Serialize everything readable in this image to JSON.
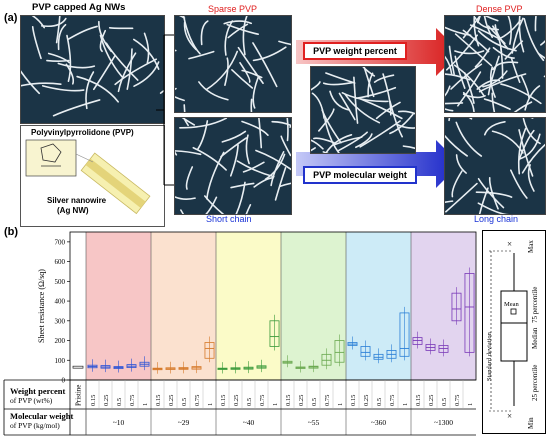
{
  "panel_a": {
    "label": "(a)",
    "title_left": "PVP capped Ag NWs",
    "sparse_label": "Sparse PVP",
    "dense_label": "Dense PVP",
    "weight_box": "PVP weight percent",
    "molecular_box": "PVP molecular weight",
    "short_chain": "Short chain",
    "long_chain": "Long chain",
    "inset_title": "Polyvinylpyrrolidone (PVP)",
    "inset_nanowire": "Silver nanowire",
    "inset_nanowire2": "(Ag NW)"
  },
  "panel_b": {
    "label": "(b)",
    "row1_label": "Weight percent",
    "row1_label2": "of PVP (wt%)",
    "row2_label": "Molecular weight",
    "row2_label2": "of PVP (kg/mol)",
    "pristine": "Pristine",
    "legend": {
      "max": "Max",
      "p75": "75 percentile",
      "mean": "Mean",
      "median": "Median",
      "p25": "25 percentile",
      "min": "Min",
      "std": "Standard deviation"
    }
  },
  "chart_data": {
    "type": "box",
    "ylabel": "Sheet resistance (Ω/sq)",
    "ylim": [
      0,
      750
    ],
    "yticks": [
      0,
      100,
      200,
      300,
      400,
      500,
      600,
      700
    ],
    "weight_percents": [
      "0.15",
      "0.25",
      "0.5",
      "0.75",
      "1"
    ],
    "groups": [
      {
        "mw": "~10",
        "color": "#f7c6c6",
        "boxcolor": "#2a52d6",
        "boxes": [
          [
            62,
            68,
            75
          ],
          [
            60,
            66,
            73
          ],
          [
            58,
            63,
            68
          ],
          [
            63,
            70,
            78
          ],
          [
            70,
            80,
            90
          ]
        ]
      },
      {
        "mw": "~29",
        "color": "#fbe1cf",
        "boxcolor": "#d67a2a",
        "boxes": [
          [
            52,
            56,
            60
          ],
          [
            53,
            57,
            62
          ],
          [
            54,
            58,
            63
          ],
          [
            55,
            62,
            68
          ],
          [
            110,
            160,
            190
          ]
        ]
      },
      {
        "mw": "~40",
        "color": "#fbfbc8",
        "boxcolor": "#3a9a3a",
        "boxes": [
          [
            53,
            57,
            60
          ],
          [
            54,
            58,
            62
          ],
          [
            55,
            60,
            65
          ],
          [
            60,
            66,
            72
          ],
          [
            170,
            220,
            300
          ]
        ]
      },
      {
        "mw": "~55",
        "color": "#ddf3d0",
        "boxcolor": "#6aa84f",
        "boxes": [
          [
            85,
            90,
            95
          ],
          [
            58,
            62,
            66
          ],
          [
            60,
            66,
            70
          ],
          [
            75,
            100,
            130
          ],
          [
            90,
            140,
            200
          ]
        ]
      },
      {
        "mw": "~360",
        "color": "#cdebf7",
        "boxcolor": "#2a7fd6",
        "boxes": [
          [
            175,
            182,
            190
          ],
          [
            120,
            140,
            170
          ],
          [
            105,
            115,
            130
          ],
          [
            110,
            130,
            150
          ],
          [
            120,
            160,
            340
          ]
        ]
      },
      {
        "mw": "~1300",
        "color": "#e2d4ef",
        "boxcolor": "#7a3ab8",
        "boxes": [
          [
            180,
            200,
            215
          ],
          [
            150,
            165,
            180
          ],
          [
            140,
            160,
            175
          ],
          [
            300,
            360,
            440
          ],
          [
            140,
            370,
            540
          ]
        ]
      }
    ],
    "pristine": [
      60,
      65,
      70
    ]
  },
  "colors": {
    "red": "#e02020",
    "blue": "#1a33d6"
  }
}
